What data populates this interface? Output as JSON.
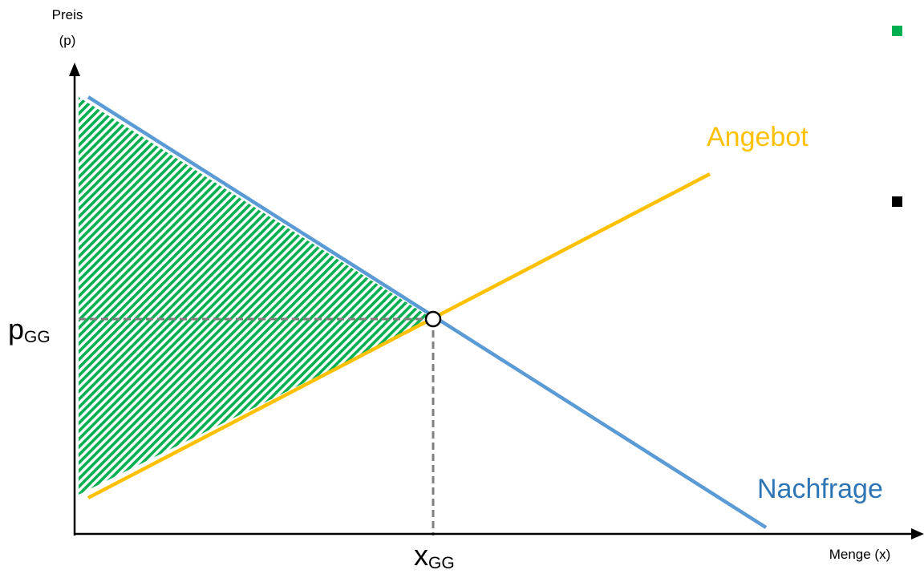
{
  "diagram": {
    "y_axis": {
      "label_line1": "Preis",
      "label_line2": "(p)"
    },
    "x_axis": {
      "label": "Menge (x)"
    },
    "price_marker": {
      "base": "p",
      "sub": "GG"
    },
    "quantity_marker": {
      "base": "x",
      "sub": "GG"
    },
    "supply": {
      "label": "Angebot",
      "color": "#FFC000"
    },
    "demand": {
      "label": "Nachfrage",
      "color": "#5B9BD5"
    },
    "surplus_hatch_color": "#00B050",
    "legend_markers": [
      {
        "color": "#00B050"
      },
      {
        "color": "#000000"
      }
    ]
  }
}
